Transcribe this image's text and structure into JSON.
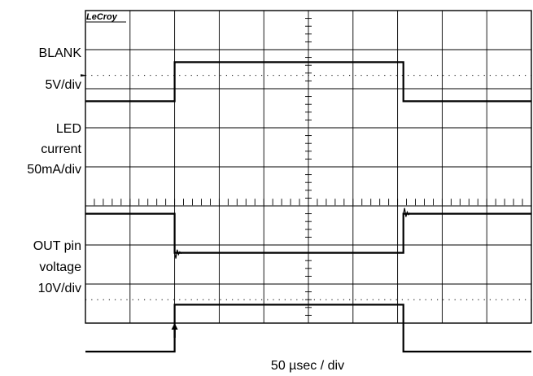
{
  "chart_data": {
    "type": "line",
    "brand": "LeCroy",
    "xlabel": "50 µsec / div",
    "x_divisions": 10,
    "y_divisions": 8,
    "grid": true,
    "trigger_marker_x": 2,
    "channels": [
      {
        "label": [
          "BLANK",
          "5V/div"
        ],
        "scale_per_div": 5,
        "unit": "V",
        "x": [
          0,
          2,
          2,
          7.13,
          7.13,
          10
        ],
        "y": [
          0,
          0,
          1.0,
          1.0,
          0,
          0
        ]
      },
      {
        "label": [
          "LED",
          "current",
          "50mA/div"
        ],
        "scale_per_div": 50,
        "unit": "mA",
        "x": [
          0,
          2,
          2,
          7.13,
          7.13,
          10
        ],
        "y": [
          0,
          0,
          -1.0,
          -1.0,
          0,
          0
        ]
      },
      {
        "label": [
          "OUT pin",
          "voltage",
          "10V/div"
        ],
        "scale_per_div": 10,
        "unit": "V",
        "x": [
          0,
          2,
          2,
          7.13,
          7.13,
          10
        ],
        "y": [
          0,
          0,
          1.2,
          1.2,
          0,
          0
        ]
      }
    ]
  }
}
